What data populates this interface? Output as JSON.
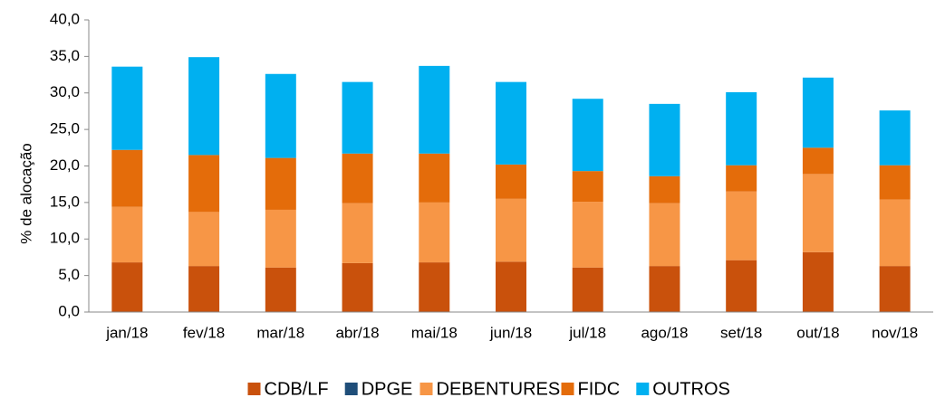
{
  "chart_data": {
    "type": "stacked_bar",
    "y_label": "% de alocação",
    "categories": [
      "jan/18",
      "fev/18",
      "mar/18",
      "abr/18",
      "mai/18",
      "jun/18",
      "jul/18",
      "ago/18",
      "set/18",
      "out/18",
      "nov/18"
    ],
    "series": [
      {
        "name": "CDB/LF",
        "color": "#c9510c",
        "values": [
          6.8,
          6.3,
          6.1,
          6.7,
          6.8,
          6.9,
          6.1,
          6.3,
          7.1,
          8.2,
          6.3
        ]
      },
      {
        "name": "DPGE",
        "color": "#1f4e79",
        "values": [
          0,
          0,
          0,
          0,
          0,
          0,
          0,
          0,
          0,
          0,
          0
        ]
      },
      {
        "name": "DEBENTURES",
        "color": "#f79646",
        "values": [
          7.6,
          7.4,
          7.9,
          8.2,
          8.2,
          8.6,
          9.0,
          8.6,
          9.4,
          10.7,
          9.1
        ]
      },
      {
        "name": "FIDC",
        "color": "#e46c0a",
        "values": [
          7.8,
          7.8,
          7.1,
          6.8,
          6.7,
          4.7,
          4.2,
          3.7,
          3.6,
          3.6,
          4.7
        ]
      },
      {
        "name": "OUTROS",
        "color": "#00b0f0",
        "values": [
          11.4,
          13.4,
          11.5,
          9.8,
          12.0,
          11.3,
          9.9,
          9.9,
          10.0,
          9.6,
          7.5
        ]
      }
    ],
    "ylim": [
      0,
      40
    ],
    "yticks": [
      {
        "value": 0,
        "label": "0,0"
      },
      {
        "value": 5,
        "label": "5,0"
      },
      {
        "value": 10,
        "label": "10,0"
      },
      {
        "value": 15,
        "label": "15,0"
      },
      {
        "value": 20,
        "label": "20,0"
      },
      {
        "value": 25,
        "label": "25,0"
      },
      {
        "value": 30,
        "label": "30,0"
      },
      {
        "value": 35,
        "label": "35,0"
      },
      {
        "value": 40,
        "label": "40,0"
      }
    ],
    "legend": "bottom"
  }
}
